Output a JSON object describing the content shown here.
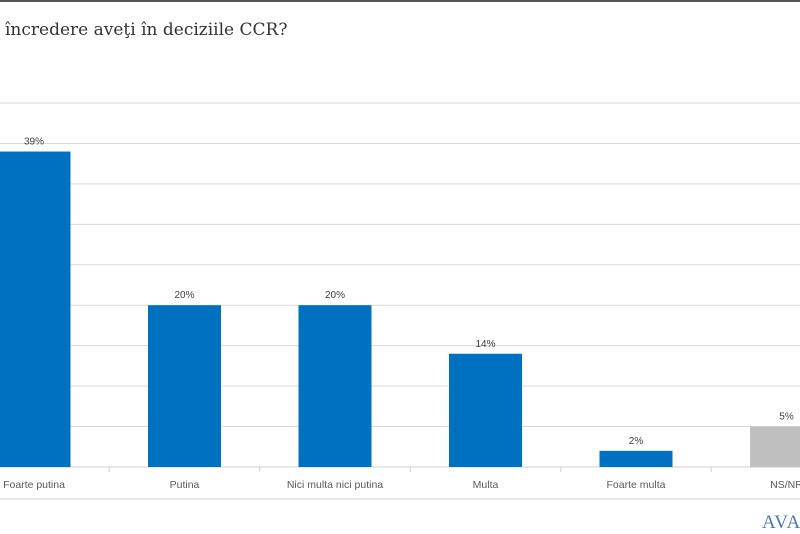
{
  "title": "încredere aveţi în deciziile CCR?",
  "logo_text": "AVAN",
  "chart_data": {
    "type": "bar",
    "title": "încredere aveţi în deciziile CCR?",
    "categories": [
      "Foarte putina",
      "Putina",
      "Nici multa nici putina",
      "Multa",
      "Foarte multa",
      "NS/NR"
    ],
    "values": [
      39,
      20,
      20,
      14,
      2,
      5
    ],
    "data_labels": [
      "39%",
      "20%",
      "20%",
      "14%",
      "2%",
      "5%"
    ],
    "colors": [
      "#0070c0",
      "#0070c0",
      "#0070c0",
      "#0070c0",
      "#0070c0",
      "#bfbfbf"
    ],
    "ylim": [
      0,
      45
    ],
    "grid": true,
    "xlabel": "",
    "ylabel": ""
  }
}
